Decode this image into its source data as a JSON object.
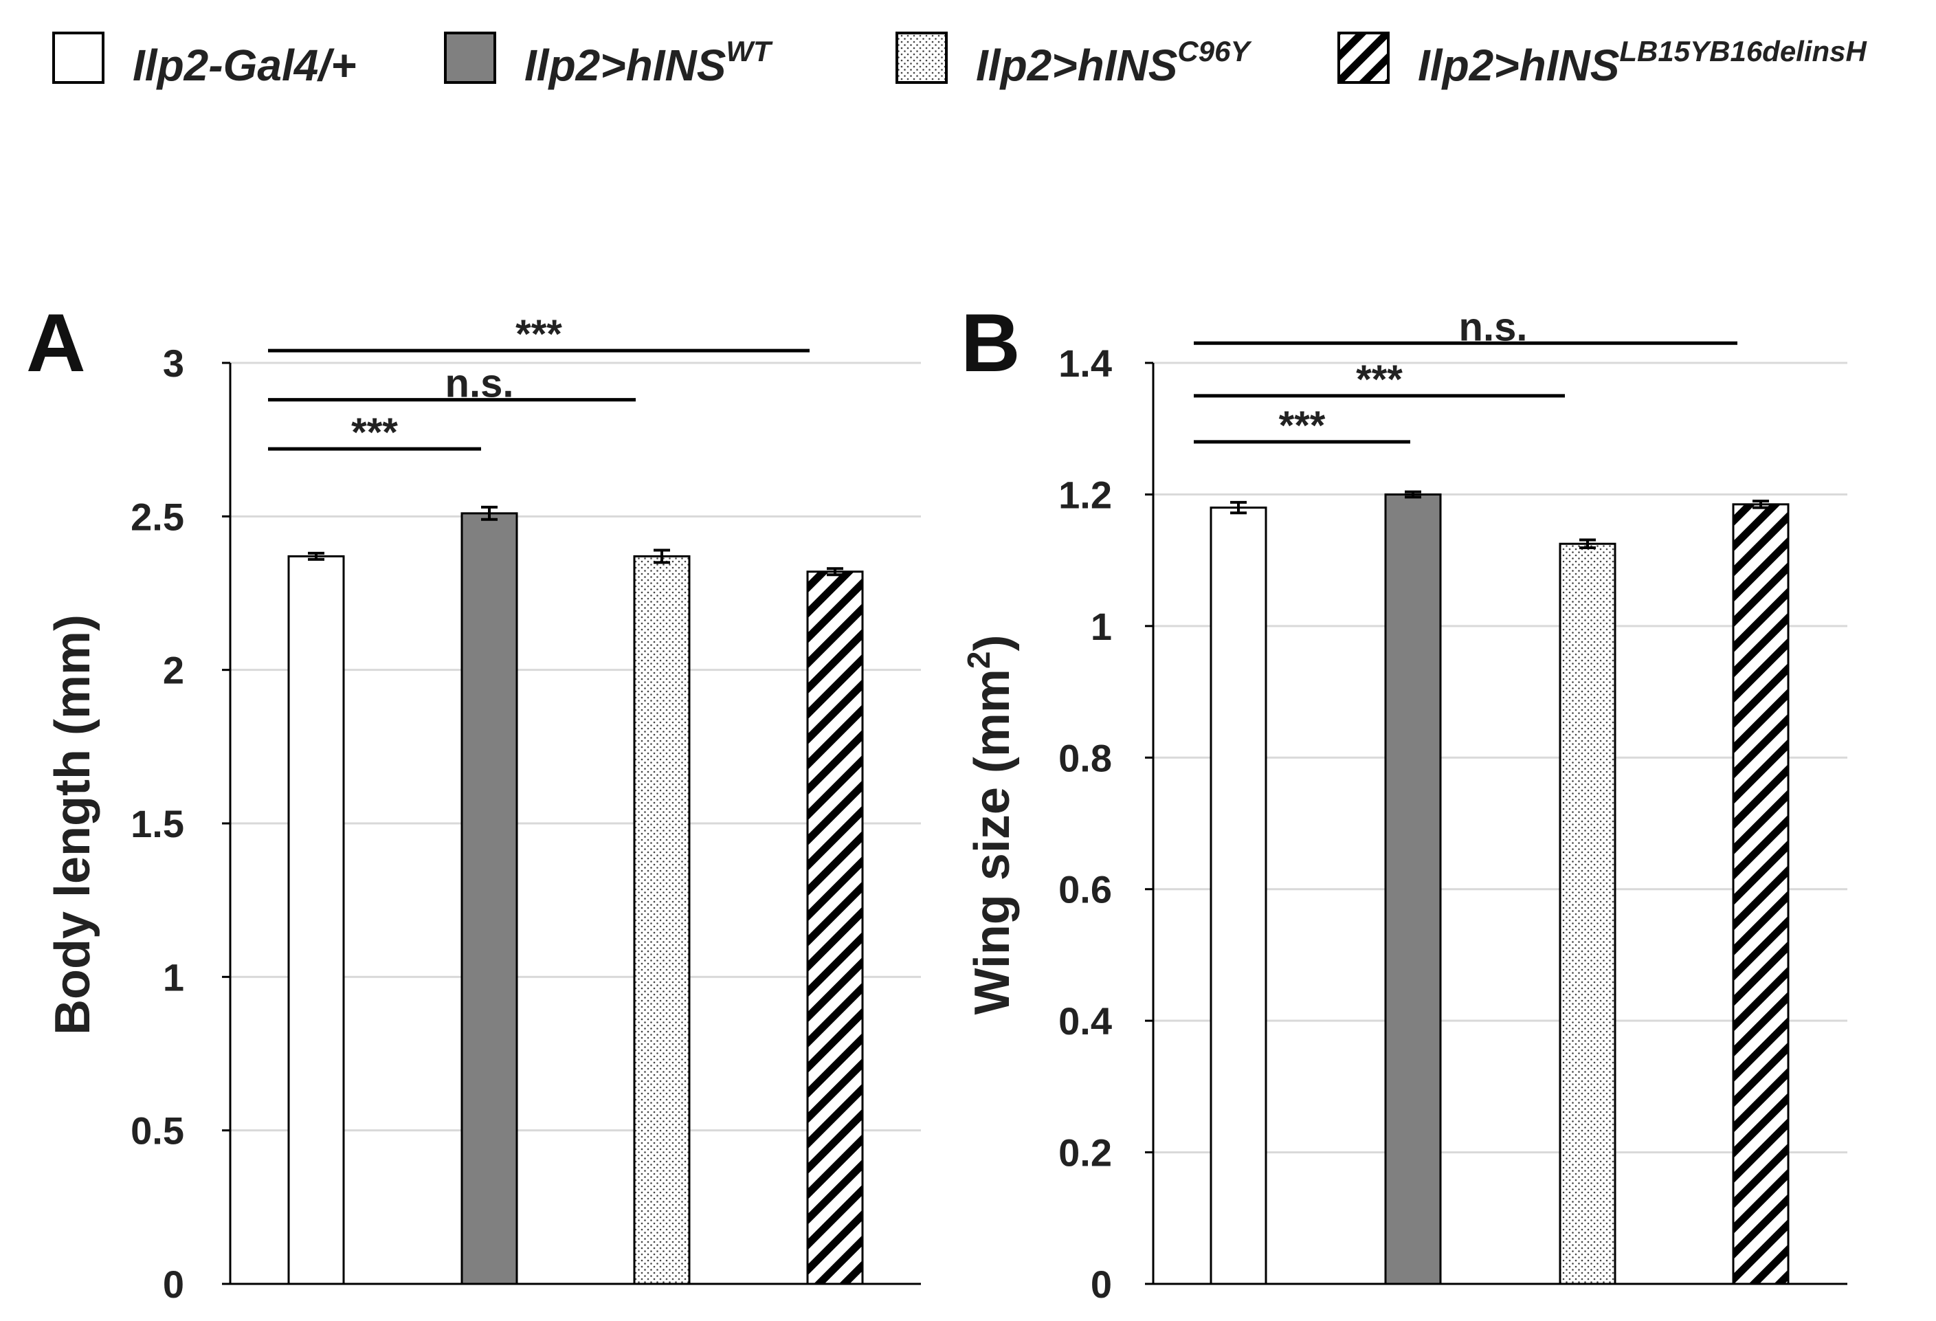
{
  "legend": {
    "items": [
      {
        "key": "ctrl",
        "base": "Ilp2-Gal4/+",
        "sup": "",
        "fill": "white"
      },
      {
        "key": "wt",
        "base": "Ilp2>hINS",
        "sup": "WT",
        "fill": "gray"
      },
      {
        "key": "c96y",
        "base": "Ilp2>hINS",
        "sup": "C96Y",
        "fill": "dots"
      },
      {
        "key": "lb15",
        "base": "Ilp2>hINS",
        "sup": "LB15YB16delinsH",
        "fill": "hatch"
      }
    ]
  },
  "colors": {
    "bar_gray": "#808080",
    "grid": "#d9d9d9",
    "axis": "#000000",
    "text": "#222222"
  },
  "chart_data": [
    {
      "panel": "A",
      "type": "bar",
      "title": "",
      "xlabel": "",
      "ylabel": "Body length (mm)",
      "ylim": [
        0,
        3
      ],
      "yticks": [
        0,
        0.5,
        1,
        1.5,
        2,
        2.5,
        3
      ],
      "ytick_labels": [
        "0",
        "0.5",
        "1",
        "1.5",
        "2",
        "2.5",
        "3"
      ],
      "grid": true,
      "categories": [
        "Ilp2-Gal4/+",
        "Ilp2>hINS WT",
        "Ilp2>hINS C96Y",
        "Ilp2>hINS LB15YB16delinsH"
      ],
      "values": [
        2.37,
        2.51,
        2.37,
        2.32
      ],
      "errors": [
        0.01,
        0.02,
        0.02,
        0.01
      ],
      "significance": [
        {
          "from": 0,
          "to": 1,
          "label": "***",
          "y": 2.72
        },
        {
          "from": 0,
          "to": 2,
          "label": "n.s.",
          "y": 2.88
        },
        {
          "from": 0,
          "to": 3,
          "label": "***",
          "y": 3.04
        }
      ]
    },
    {
      "panel": "B",
      "type": "bar",
      "title": "",
      "xlabel": "",
      "ylabel": "Wing size (mm",
      "ylabel_sup": "2",
      "ylabel_end": ")",
      "ylim": [
        0,
        1.4
      ],
      "yticks": [
        0,
        0.2,
        0.4,
        0.6,
        0.8,
        1,
        1.2,
        1.4
      ],
      "ytick_labels": [
        "0",
        "0.2",
        "0.4",
        "0.6",
        "0.8",
        "1",
        "1.2",
        "1.4"
      ],
      "grid": true,
      "categories": [
        "Ilp2-Gal4/+",
        "Ilp2>hINS WT",
        "Ilp2>hINS C96Y",
        "Ilp2>hINS LB15YB16delinsH"
      ],
      "values": [
        1.18,
        1.2,
        1.125,
        1.185
      ],
      "errors": [
        0.008,
        0.004,
        0.006,
        0.005
      ],
      "significance": [
        {
          "from": 0,
          "to": 1,
          "label": "***",
          "y": 1.28
        },
        {
          "from": 0,
          "to": 2,
          "label": "***",
          "y": 1.35
        },
        {
          "from": 0,
          "to": 3,
          "label": "n.s.",
          "y": 1.43
        }
      ]
    }
  ]
}
